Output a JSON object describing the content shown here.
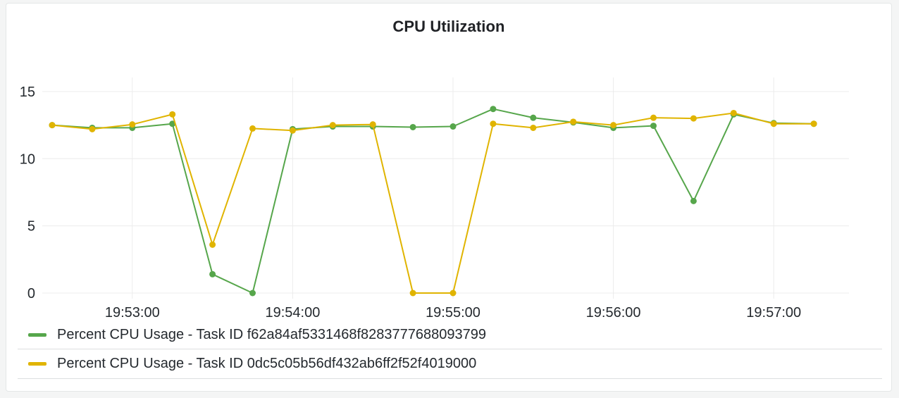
{
  "panel": {
    "title": "CPU Utilization"
  },
  "colors": {
    "background": "#f4f5f5",
    "panel": "#ffffff",
    "grid": "#ececec",
    "series_green": "#56a64b",
    "series_yellow": "#e0b400"
  },
  "legend": {
    "items": [
      {
        "label": "Percent CPU Usage - Task ID f62a84af5331468f8283777688093799",
        "color": "#56a64b"
      },
      {
        "label": "Percent CPU Usage - Task ID 0dc5c05b56df432ab6ff2f52f4019000",
        "color": "#e0b400"
      }
    ]
  },
  "axes": {
    "y_ticks": [
      "0",
      "5",
      "10",
      "15"
    ],
    "x_ticks": [
      "19:53:00",
      "19:54:00",
      "19:55:00",
      "19:56:00",
      "19:57:00"
    ]
  },
  "chart_data": {
    "type": "line",
    "title": "CPU Utilization",
    "xlabel": "",
    "ylabel": "",
    "ylim": [
      0,
      15.5
    ],
    "grid": true,
    "legend_position": "bottom",
    "x": [
      "19:52:30",
      "19:52:45",
      "19:53:00",
      "19:53:15",
      "19:53:30",
      "19:53:45",
      "19:54:00",
      "19:54:15",
      "19:54:30",
      "19:54:45",
      "19:55:00",
      "19:55:15",
      "19:55:30",
      "19:55:45",
      "19:56:00",
      "19:56:15",
      "19:56:30",
      "19:56:45",
      "19:57:00",
      "19:57:15"
    ],
    "x_tick_labels": [
      "19:53:00",
      "19:54:00",
      "19:55:00",
      "19:56:00",
      "19:57:00"
    ],
    "y_tick_labels": [
      "0",
      "5",
      "10",
      "15"
    ],
    "series": [
      {
        "name": "Percent CPU Usage - Task ID f62a84af5331468f8283777688093799",
        "color": "#56a64b",
        "values": [
          12.5,
          12.3,
          12.3,
          12.6,
          1.4,
          0.0,
          12.2,
          12.4,
          12.4,
          12.35,
          12.4,
          13.7,
          13.05,
          12.7,
          12.3,
          12.45,
          6.85,
          13.3,
          12.65,
          12.6
        ]
      },
      {
        "name": "Percent CPU Usage - Task ID 0dc5c05b56df432ab6ff2f52f4019000",
        "color": "#e0b400",
        "values": [
          12.5,
          12.2,
          12.55,
          13.3,
          3.6,
          12.25,
          12.1,
          12.5,
          12.55,
          0.0,
          0.0,
          12.6,
          12.3,
          12.75,
          12.5,
          13.05,
          13.0,
          13.4,
          12.6,
          12.6
        ]
      }
    ]
  }
}
